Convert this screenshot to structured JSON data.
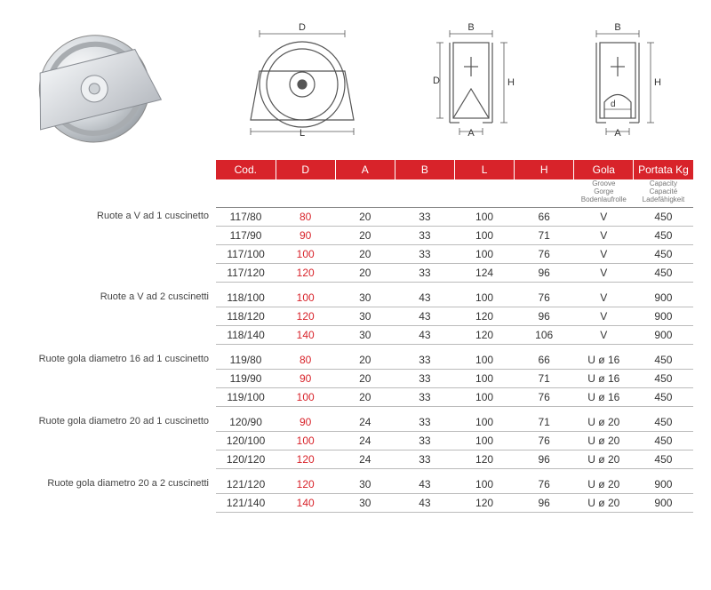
{
  "brand_color": "#d8232a",
  "header": {
    "columns": [
      "Cod.",
      "D",
      "A",
      "B",
      "L",
      "H",
      "Gola",
      "Portata Kg"
    ],
    "subtext": {
      "Gola": "Groove\nGorge\nBodenlaufrolle",
      "Portata Kg": "Capacity\nCapacité\nLadefähigkeit"
    }
  },
  "diagram_labels": {
    "front": {
      "top": "D",
      "bottom": "L"
    },
    "side_v": {
      "top": "B",
      "left": "D",
      "right": "H",
      "bottom": "A"
    },
    "side_u": {
      "top": "B",
      "right": "H",
      "inner": "d",
      "bottom": "A"
    }
  },
  "groups": [
    {
      "label": "Ruote a V ad 1 cuscinetto",
      "rows": [
        {
          "cod": "117/80",
          "d": "80",
          "a": "20",
          "b": "33",
          "l": "100",
          "h": "66",
          "gola": "V",
          "kg": "450"
        },
        {
          "cod": "117/90",
          "d": "90",
          "a": "20",
          "b": "33",
          "l": "100",
          "h": "71",
          "gola": "V",
          "kg": "450"
        },
        {
          "cod": "117/100",
          "d": "100",
          "a": "20",
          "b": "33",
          "l": "100",
          "h": "76",
          "gola": "V",
          "kg": "450"
        },
        {
          "cod": "117/120",
          "d": "120",
          "a": "20",
          "b": "33",
          "l": "124",
          "h": "96",
          "gola": "V",
          "kg": "450"
        }
      ]
    },
    {
      "label": "Ruote a V ad 2 cuscinetti",
      "rows": [
        {
          "cod": "118/100",
          "d": "100",
          "a": "30",
          "b": "43",
          "l": "100",
          "h": "76",
          "gola": "V",
          "kg": "900"
        },
        {
          "cod": "118/120",
          "d": "120",
          "a": "30",
          "b": "43",
          "l": "120",
          "h": "96",
          "gola": "V",
          "kg": "900"
        },
        {
          "cod": "118/140",
          "d": "140",
          "a": "30",
          "b": "43",
          "l": "120",
          "h": "106",
          "gola": "V",
          "kg": "900"
        }
      ]
    },
    {
      "label": "Ruote gola diametro 16 ad 1 cuscinetto",
      "rows": [
        {
          "cod": "119/80",
          "d": "80",
          "a": "20",
          "b": "33",
          "l": "100",
          "h": "66",
          "gola": "U  ø 16",
          "kg": "450"
        },
        {
          "cod": "119/90",
          "d": "90",
          "a": "20",
          "b": "33",
          "l": "100",
          "h": "71",
          "gola": "U  ø 16",
          "kg": "450"
        },
        {
          "cod": "119/100",
          "d": "100",
          "a": "20",
          "b": "33",
          "l": "100",
          "h": "76",
          "gola": "U  ø 16",
          "kg": "450"
        }
      ]
    },
    {
      "label": "Ruote gola diametro 20 ad 1 cuscinetto",
      "rows": [
        {
          "cod": "120/90",
          "d": "90",
          "a": "24",
          "b": "33",
          "l": "100",
          "h": "71",
          "gola": "U  ø 20",
          "kg": "450"
        },
        {
          "cod": "120/100",
          "d": "100",
          "a": "24",
          "b": "33",
          "l": "100",
          "h": "76",
          "gola": "U  ø 20",
          "kg": "450"
        },
        {
          "cod": "120/120",
          "d": "120",
          "a": "24",
          "b": "33",
          "l": "120",
          "h": "96",
          "gola": "U  ø 20",
          "kg": "450"
        }
      ]
    },
    {
      "label": "Ruote gola diametro 20 a 2 cuscinetti",
      "rows": [
        {
          "cod": "121/120",
          "d": "120",
          "a": "30",
          "b": "43",
          "l": "100",
          "h": "76",
          "gola": "U  ø 20",
          "kg": "900"
        },
        {
          "cod": "121/140",
          "d": "140",
          "a": "30",
          "b": "43",
          "l": "120",
          "h": "96",
          "gola": "U  ø 20",
          "kg": "900"
        }
      ]
    }
  ]
}
